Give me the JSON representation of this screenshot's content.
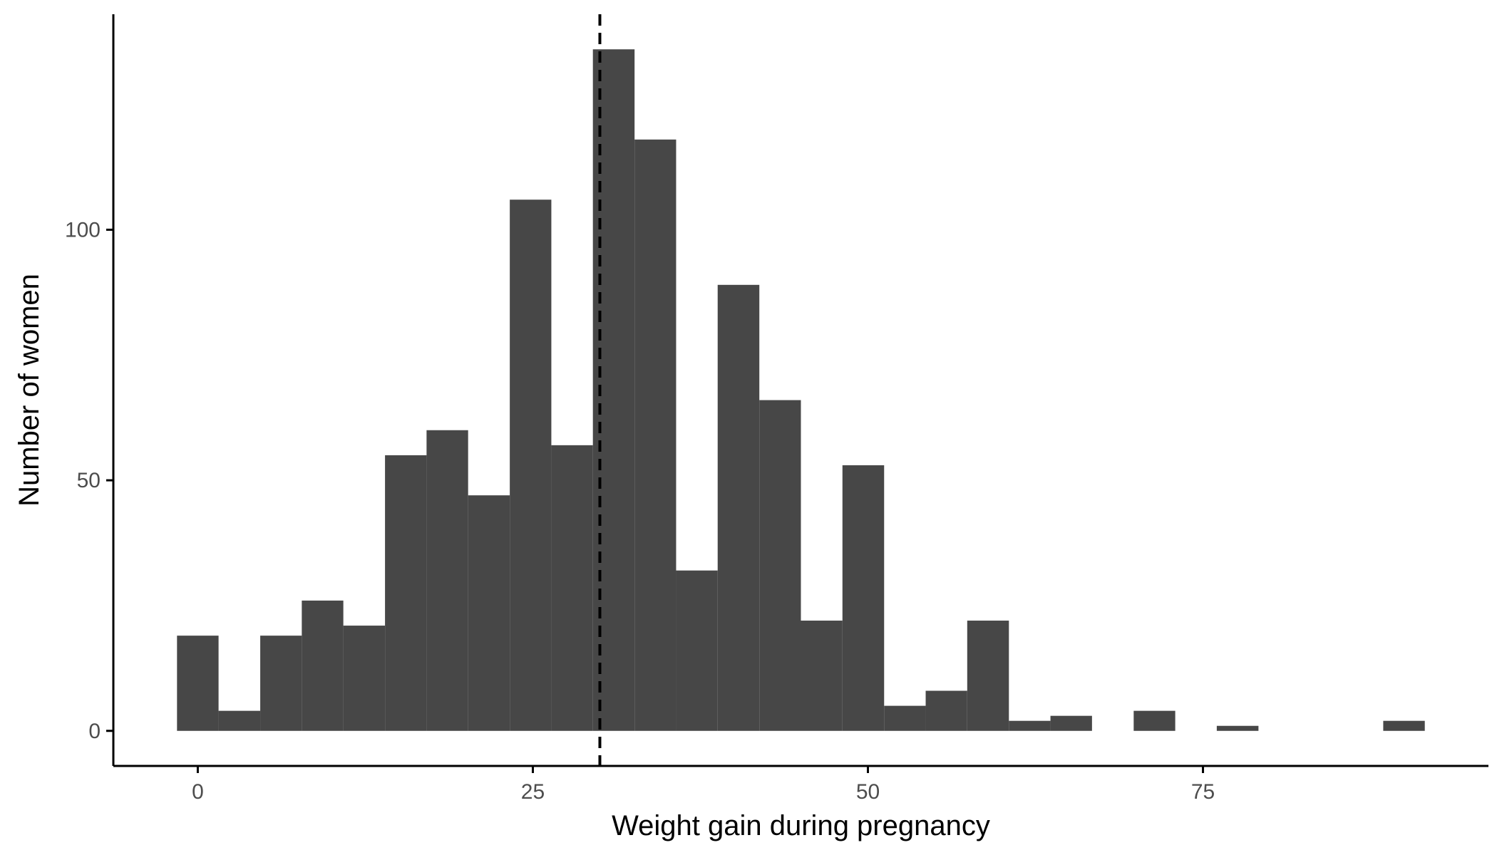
{
  "chart_data": {
    "type": "bar",
    "title": "",
    "xlabel": "Weight gain during pregnancy",
    "ylabel": "Number of women",
    "xlim": [
      -6.3,
      96.3
    ],
    "ylim": [
      -7,
      143
    ],
    "x_ticks": [
      0,
      25,
      50,
      75
    ],
    "y_ticks": [
      0,
      50,
      100
    ],
    "bin_width": 3.103,
    "bins": [
      {
        "x0": -1.55,
        "x1": 1.55,
        "count": 19
      },
      {
        "x0": 1.55,
        "x1": 4.66,
        "count": 4
      },
      {
        "x0": 4.66,
        "x1": 7.76,
        "count": 19
      },
      {
        "x0": 7.76,
        "x1": 10.86,
        "count": 26
      },
      {
        "x0": 10.86,
        "x1": 13.97,
        "count": 21
      },
      {
        "x0": 13.97,
        "x1": 17.07,
        "count": 55
      },
      {
        "x0": 17.07,
        "x1": 20.17,
        "count": 60
      },
      {
        "x0": 20.17,
        "x1": 23.28,
        "count": 47
      },
      {
        "x0": 23.28,
        "x1": 26.38,
        "count": 106
      },
      {
        "x0": 26.38,
        "x1": 29.48,
        "count": 57
      },
      {
        "x0": 29.48,
        "x1": 32.59,
        "count": 136
      },
      {
        "x0": 32.59,
        "x1": 35.69,
        "count": 118
      },
      {
        "x0": 35.69,
        "x1": 38.79,
        "count": 32
      },
      {
        "x0": 38.79,
        "x1": 41.9,
        "count": 89
      },
      {
        "x0": 41.9,
        "x1": 45.0,
        "count": 66
      },
      {
        "x0": 45.0,
        "x1": 48.1,
        "count": 22
      },
      {
        "x0": 48.1,
        "x1": 51.21,
        "count": 53
      },
      {
        "x0": 51.21,
        "x1": 54.31,
        "count": 5
      },
      {
        "x0": 54.31,
        "x1": 57.41,
        "count": 8
      },
      {
        "x0": 57.41,
        "x1": 60.52,
        "count": 22
      },
      {
        "x0": 60.52,
        "x1": 63.62,
        "count": 2
      },
      {
        "x0": 63.62,
        "x1": 66.72,
        "count": 3
      },
      {
        "x0": 66.72,
        "x1": 69.83,
        "count": 0
      },
      {
        "x0": 69.83,
        "x1": 72.93,
        "count": 4
      },
      {
        "x0": 72.93,
        "x1": 76.03,
        "count": 0
      },
      {
        "x0": 76.03,
        "x1": 79.14,
        "count": 1
      },
      {
        "x0": 79.14,
        "x1": 82.24,
        "count": 0
      },
      {
        "x0": 82.24,
        "x1": 85.34,
        "count": 0
      },
      {
        "x0": 85.34,
        "x1": 88.45,
        "count": 0
      },
      {
        "x0": 88.45,
        "x1": 91.55,
        "count": 2
      }
    ],
    "reference_line": {
      "x": 30,
      "style": "dashed"
    },
    "grid": false,
    "legend": "none",
    "colors": {
      "bar": "#474747",
      "axis": "#000000",
      "reference_line": "#000000"
    }
  }
}
